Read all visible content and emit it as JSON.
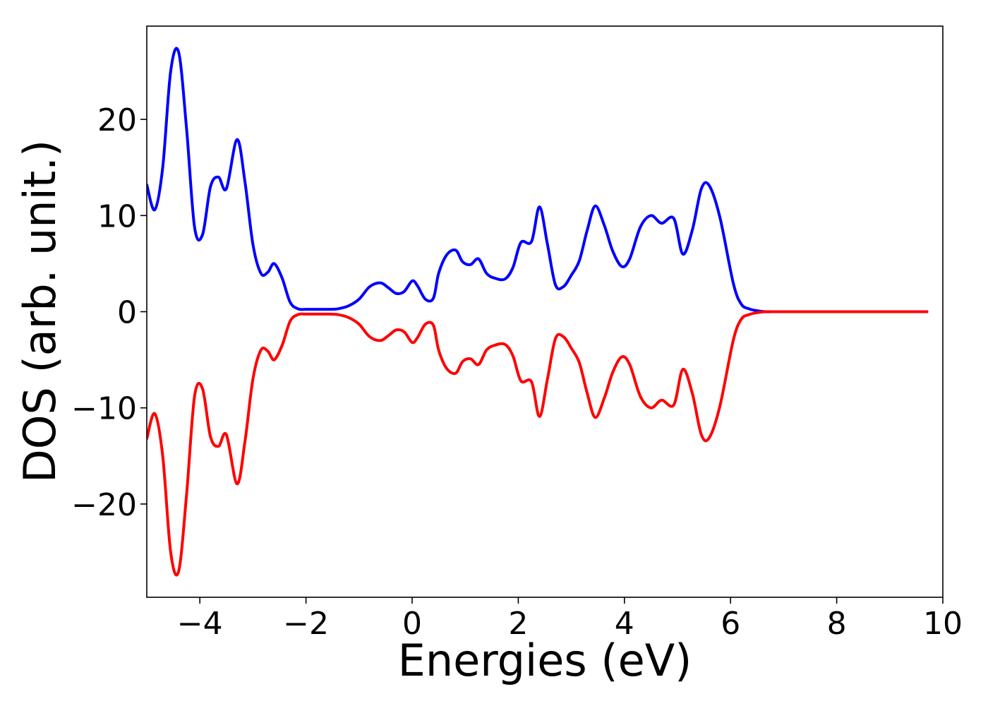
{
  "chart_data": {
    "type": "line",
    "title": "",
    "xlabel": "Energies (eV)",
    "ylabel": "DOS (arb. unit.)",
    "xlim": [
      -5,
      10
    ],
    "ylim": [
      -29.7,
      29.7
    ],
    "xticks": [
      -4,
      -2,
      0,
      2,
      4,
      6,
      8,
      10
    ],
    "yticks": [
      -20,
      -10,
      0,
      10,
      20
    ],
    "xtick_labels": [
      "−4",
      "−2",
      "0",
      "2",
      "4",
      "6",
      "8",
      "10"
    ],
    "ytick_labels": [
      "−20",
      "−10",
      "0",
      "10",
      "20"
    ],
    "grid": false,
    "legend": "none",
    "colors": {
      "up": "#0000ff",
      "down": "#ff0000",
      "axes": "#000000",
      "background": "#ffffff"
    },
    "x": [
      -5.0,
      -4.85,
      -4.7,
      -4.55,
      -4.4,
      -4.25,
      -4.1,
      -3.95,
      -3.8,
      -3.65,
      -3.5,
      -3.3,
      -3.15,
      -3.0,
      -2.85,
      -2.72,
      -2.6,
      -2.45,
      -2.3,
      -2.15,
      -2.0,
      -1.85,
      -1.7,
      -1.55,
      -1.4,
      -1.2,
      -1.0,
      -0.8,
      -0.6,
      -0.45,
      -0.3,
      -0.15,
      0.0,
      0.1,
      0.25,
      0.4,
      0.5,
      0.65,
      0.82,
      0.95,
      1.1,
      1.25,
      1.4,
      1.55,
      1.75,
      1.9,
      2.05,
      2.25,
      2.4,
      2.55,
      2.7,
      2.85,
      3.0,
      3.15,
      3.3,
      3.45,
      3.62,
      3.78,
      3.95,
      4.1,
      4.3,
      4.5,
      4.7,
      4.93,
      5.1,
      5.28,
      5.45,
      5.6,
      5.8,
      6.05,
      6.2,
      6.35,
      6.5,
      6.65,
      6.83,
      7.0,
      7.15,
      7.25,
      7.4,
      7.55,
      7.7,
      7.85,
      8.0,
      8.5,
      9.0,
      9.5,
      9.7
    ],
    "series": [
      {
        "key": "up",
        "values": [
          13.2,
          10.6,
          15.0,
          25.0,
          27.0,
          19.0,
          8.8,
          8.0,
          13.0,
          14.0,
          12.8,
          17.9,
          13.5,
          7.0,
          4.0,
          4.1,
          5.0,
          3.5,
          1.0,
          0.3,
          0.25,
          0.25,
          0.25,
          0.25,
          0.3,
          0.6,
          1.3,
          2.6,
          3.0,
          2.5,
          1.9,
          2.1,
          3.2,
          2.7,
          1.3,
          1.4,
          4.0,
          5.9,
          6.4,
          5.2,
          4.9,
          5.5,
          4.0,
          3.5,
          3.4,
          4.6,
          7.2,
          7.3,
          10.9,
          7.0,
          2.8,
          2.6,
          3.8,
          5.3,
          8.5,
          11.0,
          9.0,
          6.3,
          4.7,
          5.5,
          8.8,
          10.0,
          9.2,
          9.7,
          6.0,
          8.5,
          12.8,
          13.1,
          9.8,
          3.0,
          0.8,
          0.3,
          0.1,
          0.0,
          0.0,
          0.0,
          0.0,
          0.0,
          0.0,
          0.0,
          0.0,
          0.0,
          0.0,
          0.0,
          0.0,
          0.0,
          0.0
        ]
      },
      {
        "key": "down",
        "values": [
          -13.2,
          -10.6,
          -15.0,
          -25.0,
          -27.0,
          -19.0,
          -8.8,
          -8.0,
          -13.0,
          -14.0,
          -12.8,
          -17.9,
          -13.5,
          -7.0,
          -4.0,
          -4.1,
          -5.0,
          -3.5,
          -1.0,
          -0.3,
          -0.25,
          -0.25,
          -0.25,
          -0.25,
          -0.3,
          -0.6,
          -1.3,
          -2.6,
          -3.0,
          -2.5,
          -1.9,
          -2.1,
          -3.2,
          -2.7,
          -1.3,
          -1.4,
          -4.0,
          -5.9,
          -6.4,
          -5.2,
          -4.9,
          -5.5,
          -4.0,
          -3.5,
          -3.4,
          -4.6,
          -7.2,
          -7.3,
          -10.9,
          -7.0,
          -2.8,
          -2.6,
          -3.8,
          -5.3,
          -8.5,
          -11.0,
          -9.0,
          -6.3,
          -4.7,
          -5.5,
          -8.8,
          -10.0,
          -9.2,
          -9.7,
          -6.0,
          -8.5,
          -12.8,
          -13.1,
          -9.8,
          -3.0,
          -0.8,
          -0.3,
          -0.1,
          0.0,
          0.0,
          0.0,
          0.0,
          0.0,
          0.0,
          0.0,
          0.0,
          0.0,
          0.0,
          0.0,
          0.0,
          0.0,
          0.0
        ]
      }
    ]
  }
}
